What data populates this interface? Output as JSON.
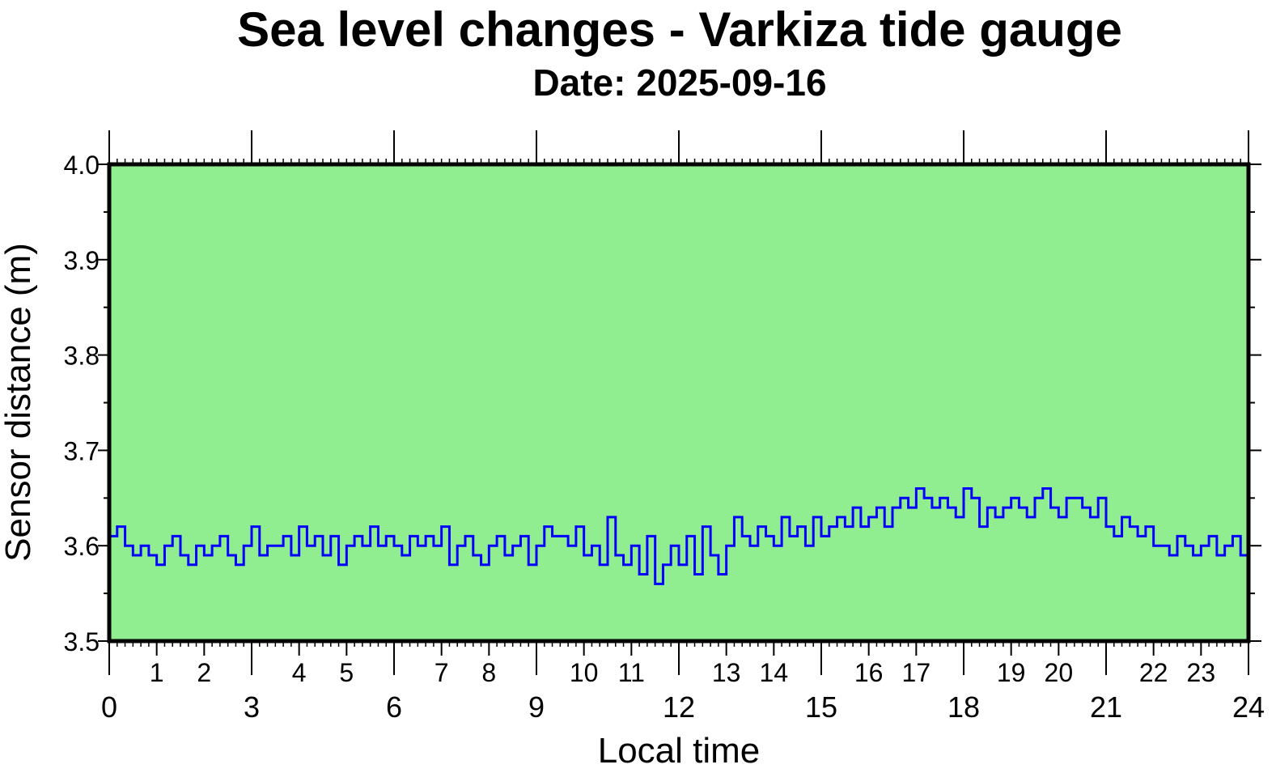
{
  "chart_data": {
    "type": "line",
    "title": "Sea level changes - Varkiza tide gauge",
    "subtitle": "Date: 2025-09-16",
    "xlabel": "Local time",
    "ylabel": "Sensor distance (m)",
    "xlim": [
      0,
      24
    ],
    "ylim": [
      3.5,
      4.0
    ],
    "x_major_ticks": [
      "0",
      "3",
      "6",
      "9",
      "12",
      "15",
      "18",
      "21",
      "24"
    ],
    "x_minor_ticks": [
      "1",
      "2",
      "4",
      "5",
      "7",
      "8",
      "10",
      "11",
      "13",
      "14",
      "16",
      "17",
      "19",
      "20",
      "22",
      "23"
    ],
    "y_ticks": [
      "3.5",
      "3.6",
      "3.7",
      "3.8",
      "3.9",
      "4.0"
    ],
    "grid": false,
    "background_color": "#90ee90",
    "line_color": "#0000ff",
    "x_step_hours": 0.1666667,
    "series": [
      {
        "name": "Sensor distance",
        "values": [
          3.61,
          3.62,
          3.6,
          3.59,
          3.6,
          3.59,
          3.58,
          3.6,
          3.61,
          3.59,
          3.58,
          3.6,
          3.59,
          3.6,
          3.61,
          3.59,
          3.58,
          3.6,
          3.62,
          3.59,
          3.6,
          3.6,
          3.61,
          3.59,
          3.62,
          3.6,
          3.61,
          3.59,
          3.61,
          3.58,
          3.6,
          3.61,
          3.6,
          3.62,
          3.6,
          3.61,
          3.6,
          3.59,
          3.61,
          3.6,
          3.61,
          3.6,
          3.62,
          3.58,
          3.6,
          3.61,
          3.59,
          3.58,
          3.6,
          3.61,
          3.59,
          3.6,
          3.61,
          3.58,
          3.6,
          3.62,
          3.61,
          3.61,
          3.6,
          3.62,
          3.59,
          3.6,
          3.58,
          3.63,
          3.59,
          3.58,
          3.6,
          3.57,
          3.61,
          3.56,
          3.58,
          3.6,
          3.58,
          3.61,
          3.57,
          3.62,
          3.59,
          3.57,
          3.6,
          3.63,
          3.61,
          3.6,
          3.62,
          3.61,
          3.6,
          3.63,
          3.61,
          3.62,
          3.6,
          3.63,
          3.61,
          3.62,
          3.63,
          3.62,
          3.64,
          3.62,
          3.63,
          3.64,
          3.62,
          3.64,
          3.65,
          3.64,
          3.66,
          3.65,
          3.64,
          3.65,
          3.64,
          3.63,
          3.66,
          3.65,
          3.62,
          3.64,
          3.63,
          3.64,
          3.65,
          3.64,
          3.63,
          3.65,
          3.66,
          3.64,
          3.63,
          3.65,
          3.65,
          3.64,
          3.63,
          3.65,
          3.62,
          3.61,
          3.63,
          3.62,
          3.61,
          3.62,
          3.6,
          3.6,
          3.59,
          3.61,
          3.6,
          3.59,
          3.6,
          3.61,
          3.59,
          3.6,
          3.61,
          3.59,
          3.6
        ]
      }
    ]
  }
}
